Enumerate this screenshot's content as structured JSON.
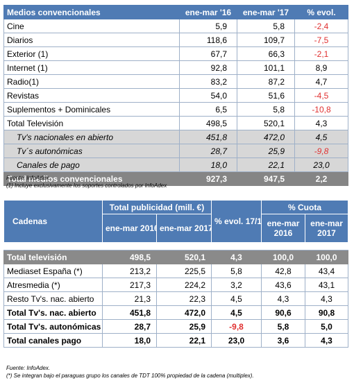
{
  "table1": {
    "headers": [
      "Medios convencionales",
      "ene-mar '16",
      "ene-mar '17",
      "% evol."
    ],
    "rows": [
      {
        "label": "Cine",
        "a": "5,9",
        "b": "5,8",
        "c": "-2,4",
        "neg": true
      },
      {
        "label": "Diarios",
        "a": "118,6",
        "b": "109,7",
        "c": "-7,5",
        "neg": true
      },
      {
        "label": "Exterior (1)",
        "a": "67,7",
        "b": "66,3",
        "c": "-2,1",
        "neg": true
      },
      {
        "label": "Internet (1)",
        "a": "92,8",
        "b": "101,1",
        "c": "8,9",
        "neg": false
      },
      {
        "label": "Radio(1)",
        "a": "83,2",
        "b": "87,2",
        "c": "4,7",
        "neg": false
      },
      {
        "label": "Revistas",
        "a": "54,0",
        "b": "51,6",
        "c": "-4,5",
        "neg": true
      },
      {
        "label": "Suplementos + Dominicales",
        "a": "6,5",
        "b": "5,8",
        "c": "-10,8",
        "neg": true
      },
      {
        "label": "Total Televisión",
        "a": "498,5",
        "b": "520,1",
        "c": "4,3",
        "neg": false
      }
    ],
    "subrows": [
      {
        "label": "Tv's nacionales en abierto",
        "a": "451,8",
        "b": "472,0",
        "c": "4,5",
        "neg": false
      },
      {
        "label": "Tv´s autonómicas",
        "a": "28,7",
        "b": "25,9",
        "c": "-9,8",
        "neg": true
      },
      {
        "label": "Canales de pago",
        "a": "18,0",
        "b": "22,1",
        "c": "23,0",
        "neg": false
      }
    ],
    "total": {
      "label": "Total medios convencionales",
      "a": "927,3",
      "b": "947,5",
      "c": "2,2"
    }
  },
  "note1": {
    "source": "Fuente: InfoAdex.",
    "footnote": "(1)  Incluye exclusivamente los soportes controlados por InfoAdex"
  },
  "table2": {
    "group_publicidad": "Total publicidad (mill. €)",
    "group_cuota": "% Cuota",
    "col_cadenas": "Cadenas",
    "col_2016": "ene-mar 2016",
    "col_2017": "ene-mar 2017",
    "col_evol": "% evol. 17/16",
    "col_c2016": "ene-mar 2016",
    "col_c2017": "ene-mar 2017",
    "rows": [
      {
        "label": "Total televisión",
        "a": "498,5",
        "b": "520,1",
        "e": "4,3",
        "c1": "100,0",
        "c2": "100,0"
      },
      {
        "label": "Mediaset España (*)",
        "a": "213,2",
        "b": "225,5",
        "e": "5,8",
        "c1": "42,8",
        "c2": "43,4"
      },
      {
        "label": "Atresmedia (*)",
        "a": "217,3",
        "b": "224,2",
        "e": "3,2",
        "c1": "43,6",
        "c2": "43,1"
      },
      {
        "label": "Resto Tv's. nac. abierto",
        "a": "21,3",
        "b": "22,3",
        "e": "4,5",
        "c1": "4,3",
        "c2": "4,3"
      },
      {
        "label": "Total Tv's. nac. abierto",
        "a": "451,8",
        "b": "472,0",
        "e": "4,5",
        "c1": "90,6",
        "c2": "90,8"
      },
      {
        "label": "Total Tv's. autonómicas",
        "a": "28,7",
        "b": "25,9",
        "e": "-9,8",
        "c1": "5,8",
        "c2": "5,0"
      },
      {
        "label": "Total canales pago",
        "a": "18,0",
        "b": "22,1",
        "e": "23,0",
        "c1": "3,6",
        "c2": "4,3"
      }
    ]
  },
  "note2": {
    "source": "Fuente: InfoAdex.",
    "footnote": "(*) Se integran bajo el paraguas grupo los canales de TDT 100% propiedad de la cadena (multiplex)."
  },
  "colors": {
    "header_blue": "#4f7bb4",
    "gray": "#858585",
    "light_gray": "#d7d7d7",
    "negative_red": "#e03030"
  }
}
